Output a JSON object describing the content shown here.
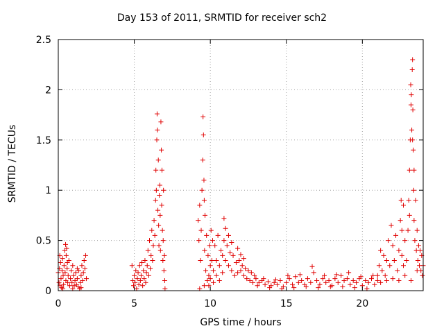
{
  "chart_data": {
    "type": "scatter",
    "title": "Day 153 of 2011, SRMTID for receiver sch2",
    "xlabel": "GPS time / hours",
    "ylabel": "SRMTID / TECUs",
    "xlim": [
      0,
      24
    ],
    "ylim": [
      0,
      2.5
    ],
    "xticks": [
      "0",
      "5",
      "10",
      "15",
      "20"
    ],
    "yticks": [
      "0",
      "0.5",
      "1",
      "1.5",
      "2",
      "2.5"
    ],
    "grid": true,
    "marker": "plus",
    "marker_color": "#e00000",
    "series": [
      {
        "points": [
          [
            0.0,
            0.18
          ],
          [
            0.05,
            0.08
          ],
          [
            0.08,
            0.22
          ],
          [
            0.12,
            0.05
          ],
          [
            0.15,
            0.28
          ],
          [
            0.18,
            0.12
          ],
          [
            0.22,
            0.03
          ],
          [
            0.25,
            0.2
          ],
          [
            0.28,
            0.32
          ],
          [
            0.32,
            0.15
          ],
          [
            0.35,
            0.06
          ],
          [
            0.38,
            0.25
          ],
          [
            0.42,
            0.4
          ],
          [
            0.45,
            0.18
          ],
          [
            0.48,
            0.46
          ],
          [
            0.5,
            0.1
          ],
          [
            0.52,
            0.35
          ],
          [
            0.55,
            0.42
          ],
          [
            0.58,
            0.22
          ],
          [
            0.62,
            0.08
          ],
          [
            0.65,
            0.15
          ],
          [
            0.7,
            0.3
          ],
          [
            0.75,
            0.05
          ],
          [
            0.8,
            0.12
          ],
          [
            0.85,
            0.2
          ],
          [
            0.9,
            0.08
          ],
          [
            0.95,
            0.25
          ],
          [
            1.0,
            0.15
          ],
          [
            1.05,
            0.05
          ],
          [
            1.1,
            0.1
          ],
          [
            1.15,
            0.18
          ],
          [
            1.2,
            0.06
          ],
          [
            1.25,
            0.12
          ],
          [
            1.3,
            0.04
          ],
          [
            1.35,
            0.2
          ],
          [
            1.4,
            0.02
          ],
          [
            1.45,
            0.08
          ],
          [
            1.5,
            0.15
          ],
          [
            1.55,
            0.25
          ],
          [
            1.6,
            0.1
          ],
          [
            1.65,
            0.18
          ],
          [
            1.7,
            0.3
          ],
          [
            1.75,
            0.22
          ],
          [
            1.8,
            0.35
          ],
          [
            1.85,
            0.12
          ],
          [
            0.1,
            0.35
          ],
          [
            0.3,
            0.02
          ],
          [
            0.6,
            0.28
          ],
          [
            0.95,
            0.02
          ],
          [
            1.25,
            0.22
          ],
          [
            1.5,
            0.03
          ],
          [
            4.85,
            0.25
          ],
          [
            4.9,
            0.1
          ],
          [
            4.95,
            0.05
          ],
          [
            5.0,
            0.15
          ],
          [
            5.05,
            0.08
          ],
          [
            5.1,
            0.2
          ],
          [
            5.15,
            0.02
          ],
          [
            5.2,
            0.12
          ],
          [
            5.25,
            0.18
          ],
          [
            5.3,
            0.06
          ],
          [
            5.35,
            0.25
          ],
          [
            5.4,
            0.1
          ],
          [
            5.45,
            0.15
          ],
          [
            5.5,
            0.28
          ],
          [
            5.55,
            0.05
          ],
          [
            5.6,
            0.2
          ],
          [
            5.65,
            0.12
          ],
          [
            5.7,
            0.3
          ],
          [
            5.75,
            0.08
          ],
          [
            5.8,
            0.18
          ],
          [
            5.85,
            0.25
          ],
          [
            5.9,
            0.4
          ],
          [
            5.95,
            0.15
          ],
          [
            6.0,
            0.5
          ],
          [
            6.05,
            0.22
          ],
          [
            6.1,
            0.35
          ],
          [
            6.15,
            0.6
          ],
          [
            6.2,
            0.3
          ],
          [
            6.25,
            0.45
          ],
          [
            6.3,
            0.7
          ],
          [
            6.35,
            0.55
          ],
          [
            6.4,
            0.9
          ],
          [
            6.42,
            1.2
          ],
          [
            6.45,
            1.0
          ],
          [
            6.48,
            1.5
          ],
          [
            6.5,
            1.76
          ],
          [
            6.52,
            1.6
          ],
          [
            6.55,
            0.8
          ],
          [
            6.58,
            1.3
          ],
          [
            6.6,
            0.65
          ],
          [
            6.62,
            0.45
          ],
          [
            6.65,
            0.95
          ],
          [
            6.68,
            1.05
          ],
          [
            6.7,
            0.75
          ],
          [
            6.72,
            0.4
          ],
          [
            6.75,
            1.68
          ],
          [
            6.78,
            1.4
          ],
          [
            6.8,
            0.85
          ],
          [
            6.82,
            1.2
          ],
          [
            6.85,
            0.6
          ],
          [
            6.88,
            0.3
          ],
          [
            6.9,
            0.5
          ],
          [
            6.92,
            1.0
          ],
          [
            6.95,
            0.2
          ],
          [
            6.98,
            0.35
          ],
          [
            7.0,
            0.1
          ],
          [
            7.02,
            0.02
          ],
          [
            9.2,
            0.7
          ],
          [
            9.25,
            0.5
          ],
          [
            9.3,
            0.85
          ],
          [
            9.35,
            0.3
          ],
          [
            9.4,
            0.6
          ],
          [
            9.45,
            1.0
          ],
          [
            9.5,
            1.3
          ],
          [
            9.52,
            1.73
          ],
          [
            9.55,
            1.55
          ],
          [
            9.58,
            1.1
          ],
          [
            9.6,
            0.9
          ],
          [
            9.62,
            0.4
          ],
          [
            9.65,
            0.75
          ],
          [
            9.7,
            0.2
          ],
          [
            9.75,
            0.55
          ],
          [
            9.8,
            0.1
          ],
          [
            9.85,
            0.35
          ],
          [
            9.9,
            0.15
          ],
          [
            9.95,
            0.45
          ],
          [
            10.0,
            0.25
          ],
          [
            10.05,
            0.6
          ],
          [
            10.1,
            0.3
          ],
          [
            10.15,
            0.5
          ],
          [
            10.2,
            0.2
          ],
          [
            10.3,
            0.45
          ],
          [
            10.4,
            0.3
          ],
          [
            10.5,
            0.55
          ],
          [
            10.6,
            0.25
          ],
          [
            10.7,
            0.4
          ],
          [
            10.8,
            0.35
          ],
          [
            10.9,
            0.5
          ],
          [
            11.0,
            0.3
          ],
          [
            11.1,
            0.45
          ],
          [
            11.2,
            0.25
          ],
          [
            11.3,
            0.38
          ],
          [
            11.4,
            0.2
          ],
          [
            11.5,
            0.35
          ],
          [
            11.6,
            0.15
          ],
          [
            11.7,
            0.28
          ],
          [
            11.8,
            0.18
          ],
          [
            11.9,
            0.3
          ],
          [
            12.0,
            0.2
          ],
          [
            12.1,
            0.25
          ],
          [
            12.2,
            0.15
          ],
          [
            12.3,
            0.22
          ],
          [
            12.4,
            0.12
          ],
          [
            12.5,
            0.2
          ],
          [
            12.6,
            0.1
          ],
          [
            12.7,
            0.18
          ],
          [
            12.8,
            0.08
          ],
          [
            12.9,
            0.15
          ],
          [
            9.9,
            0.05
          ],
          [
            10.0,
            0.12
          ],
          [
            10.2,
            0.08
          ],
          [
            10.4,
            0.15
          ],
          [
            10.6,
            0.1
          ],
          [
            10.8,
            0.18
          ],
          [
            11.0,
            0.62
          ],
          [
            11.2,
            0.55
          ],
          [
            11.4,
            0.48
          ],
          [
            11.8,
            0.42
          ],
          [
            12.0,
            0.36
          ],
          [
            12.2,
            0.32
          ],
          [
            9.3,
            0.02
          ],
          [
            9.6,
            0.05
          ],
          [
            10.9,
            0.72
          ],
          [
            13.0,
            0.12
          ],
          [
            13.2,
            0.08
          ],
          [
            13.4,
            0.1
          ],
          [
            13.6,
            0.06
          ],
          [
            13.8,
            0.09
          ],
          [
            14.0,
            0.05
          ],
          [
            14.2,
            0.08
          ],
          [
            14.4,
            0.06
          ],
          [
            14.6,
            0.1
          ],
          [
            14.8,
            0.04
          ],
          [
            15.0,
            0.08
          ],
          [
            15.2,
            0.12
          ],
          [
            15.4,
            0.06
          ],
          [
            15.6,
            0.14
          ],
          [
            15.8,
            0.08
          ],
          [
            16.0,
            0.1
          ],
          [
            16.2,
            0.06
          ],
          [
            16.4,
            0.12
          ],
          [
            16.6,
            0.08
          ],
          [
            16.8,
            0.18
          ],
          [
            17.0,
            0.1
          ],
          [
            17.2,
            0.06
          ],
          [
            17.4,
            0.12
          ],
          [
            17.6,
            0.08
          ],
          [
            17.8,
            0.1
          ],
          [
            18.0,
            0.05
          ],
          [
            18.2,
            0.12
          ],
          [
            18.4,
            0.08
          ],
          [
            18.6,
            0.15
          ],
          [
            18.8,
            0.1
          ],
          [
            19.0,
            0.12
          ],
          [
            19.2,
            0.06
          ],
          [
            19.4,
            0.1
          ],
          [
            19.6,
            0.08
          ],
          [
            19.8,
            0.12
          ],
          [
            20.0,
            0.05
          ],
          [
            20.2,
            0.1
          ],
          [
            20.4,
            0.08
          ],
          [
            20.6,
            0.12
          ],
          [
            20.8,
            0.06
          ],
          [
            21.0,
            0.1
          ],
          [
            13.1,
            0.05
          ],
          [
            13.5,
            0.12
          ],
          [
            13.9,
            0.03
          ],
          [
            14.3,
            0.11
          ],
          [
            14.7,
            0.02
          ],
          [
            15.1,
            0.15
          ],
          [
            15.5,
            0.03
          ],
          [
            15.9,
            0.16
          ],
          [
            16.3,
            0.04
          ],
          [
            16.7,
            0.24
          ],
          [
            17.1,
            0.03
          ],
          [
            17.5,
            0.15
          ],
          [
            17.9,
            0.04
          ],
          [
            18.3,
            0.16
          ],
          [
            18.7,
            0.04
          ],
          [
            19.1,
            0.18
          ],
          [
            19.5,
            0.03
          ],
          [
            19.9,
            0.14
          ],
          [
            20.3,
            0.02
          ],
          [
            20.7,
            0.15
          ],
          [
            21.0,
            0.15
          ],
          [
            21.1,
            0.25
          ],
          [
            21.2,
            0.4
          ],
          [
            21.3,
            0.2
          ],
          [
            21.4,
            0.35
          ],
          [
            21.5,
            0.15
          ],
          [
            21.6,
            0.3
          ],
          [
            21.7,
            0.5
          ],
          [
            21.8,
            0.25
          ],
          [
            21.9,
            0.65
          ],
          [
            22.0,
            0.45
          ],
          [
            22.1,
            0.3
          ],
          [
            22.2,
            0.55
          ],
          [
            22.3,
            0.2
          ],
          [
            22.4,
            0.4
          ],
          [
            22.5,
            0.7
          ],
          [
            22.55,
            0.9
          ],
          [
            22.6,
            0.35
          ],
          [
            22.7,
            0.25
          ],
          [
            22.8,
            0.5
          ],
          [
            22.9,
            0.3
          ],
          [
            23.0,
            0.6
          ],
          [
            23.05,
            0.9
          ],
          [
            23.1,
            1.2
          ],
          [
            23.15,
            1.5
          ],
          [
            23.18,
            2.05
          ],
          [
            23.2,
            1.85
          ],
          [
            23.22,
            1.95
          ],
          [
            23.25,
            1.6
          ],
          [
            23.28,
            2.2
          ],
          [
            23.3,
            2.3
          ],
          [
            23.32,
            1.8
          ],
          [
            23.35,
            1.4
          ],
          [
            23.38,
            1.0
          ],
          [
            23.4,
            0.7
          ],
          [
            23.45,
            0.5
          ],
          [
            23.5,
            0.9
          ],
          [
            23.55,
            0.4
          ],
          [
            23.6,
            0.6
          ],
          [
            23.65,
            0.3
          ],
          [
            23.7,
            0.45
          ],
          [
            23.75,
            0.25
          ],
          [
            23.8,
            0.4
          ],
          [
            23.85,
            0.2
          ],
          [
            23.9,
            0.35
          ],
          [
            23.95,
            0.15
          ],
          [
            24.0,
            0.25
          ],
          [
            21.2,
            0.08
          ],
          [
            21.6,
            0.1
          ],
          [
            22.0,
            0.12
          ],
          [
            22.4,
            0.1
          ],
          [
            22.8,
            0.15
          ],
          [
            23.2,
            0.1
          ],
          [
            23.6,
            0.2
          ],
          [
            23.4,
            1.2
          ],
          [
            23.3,
            1.5
          ],
          [
            23.1,
            0.75
          ],
          [
            22.7,
            0.85
          ],
          [
            22.6,
            0.6
          ]
        ]
      }
    ]
  }
}
